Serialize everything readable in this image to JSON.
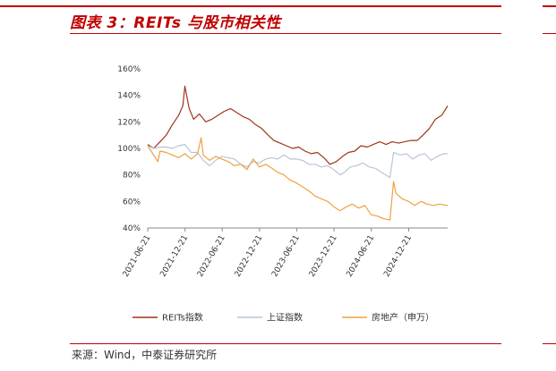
{
  "title": "图表 3：REITs 与股市相关性",
  "source": "来源：Wind，中泰证券研究所",
  "colors": {
    "accent": "#c00000",
    "reits": "#a0341c",
    "index": "#b8c4d6",
    "realestate": "#f0a040"
  },
  "chart_data": {
    "type": "line",
    "title": "",
    "xlabel": "",
    "ylabel": "",
    "ylim": [
      0.4,
      1.6
    ],
    "yticks": [
      0.4,
      0.6,
      0.8,
      1.0,
      1.2,
      1.4,
      1.6
    ],
    "ytick_labels": [
      "40%",
      "60%",
      "80%",
      "100%",
      "120%",
      "140%",
      "160%"
    ],
    "xlim": [
      "2021-06-21",
      "2025-06-30"
    ],
    "xticks": [
      "2021-06-21",
      "2021-12-21",
      "2022-06-21",
      "2022-12-21",
      "2023-06-21",
      "2023-12-21",
      "2024-06-21",
      "2024-12-21"
    ],
    "legend_position": "bottom",
    "grid": false,
    "series": [
      {
        "name": "REITs指数",
        "color": "#a0341c",
        "x": [
          "2021-06-21",
          "2021-07-20",
          "2021-08-20",
          "2021-09-20",
          "2021-10-20",
          "2021-11-20",
          "2021-12-10",
          "2021-12-20",
          "2022-01-10",
          "2022-02-01",
          "2022-03-01",
          "2022-04-01",
          "2022-05-01",
          "2022-06-01",
          "2022-07-01",
          "2022-08-01",
          "2022-09-01",
          "2022-10-01",
          "2022-11-01",
          "2022-12-01",
          "2023-01-01",
          "2023-02-01",
          "2023-03-01",
          "2023-04-01",
          "2023-05-01",
          "2023-06-01",
          "2023-07-01",
          "2023-08-01",
          "2023-09-01",
          "2023-10-01",
          "2023-11-01",
          "2023-12-01",
          "2024-01-01",
          "2024-02-01",
          "2024-03-01",
          "2024-04-01",
          "2024-05-01",
          "2024-06-01",
          "2024-07-01",
          "2024-08-01",
          "2024-09-01",
          "2024-10-01",
          "2024-11-01",
          "2024-12-01",
          "2025-01-01",
          "2025-02-01",
          "2025-03-01",
          "2025-04-01",
          "2025-05-01",
          "2025-06-01",
          "2025-06-30"
        ],
        "values": [
          1.03,
          1.0,
          1.05,
          1.1,
          1.18,
          1.25,
          1.32,
          1.47,
          1.3,
          1.22,
          1.26,
          1.2,
          1.22,
          1.25,
          1.28,
          1.3,
          1.27,
          1.24,
          1.22,
          1.18,
          1.15,
          1.1,
          1.06,
          1.04,
          1.02,
          1.0,
          1.01,
          0.98,
          0.96,
          0.97,
          0.93,
          0.88,
          0.9,
          0.94,
          0.97,
          0.98,
          1.02,
          1.01,
          1.03,
          1.05,
          1.03,
          1.05,
          1.04,
          1.05,
          1.06,
          1.06,
          1.1,
          1.15,
          1.22,
          1.25,
          1.32
        ]
      },
      {
        "name": "上证指数",
        "color": "#b8c4d6",
        "x": [
          "2021-06-21",
          "2021-07-20",
          "2021-08-20",
          "2021-09-20",
          "2021-10-20",
          "2021-11-20",
          "2021-12-20",
          "2022-01-20",
          "2022-02-20",
          "2022-03-20",
          "2022-04-20",
          "2022-05-20",
          "2022-06-20",
          "2022-07-20",
          "2022-08-20",
          "2022-09-20",
          "2022-10-20",
          "2022-11-20",
          "2022-12-20",
          "2023-01-20",
          "2023-02-20",
          "2023-03-20",
          "2023-04-20",
          "2023-05-20",
          "2023-06-20",
          "2023-07-20",
          "2023-08-20",
          "2023-09-20",
          "2023-10-20",
          "2023-11-20",
          "2023-12-20",
          "2024-01-20",
          "2024-02-10",
          "2024-03-10",
          "2024-04-10",
          "2024-05-10",
          "2024-06-10",
          "2024-07-10",
          "2024-08-10",
          "2024-09-20",
          "2024-10-08",
          "2024-11-10",
          "2024-12-10",
          "2025-01-10",
          "2025-02-10",
          "2025-03-10",
          "2025-04-10",
          "2025-05-10",
          "2025-06-10",
          "2025-06-30"
        ],
        "values": [
          1.02,
          1.0,
          1.01,
          1.01,
          1.0,
          1.02,
          1.03,
          0.97,
          0.97,
          0.91,
          0.87,
          0.91,
          0.94,
          0.93,
          0.92,
          0.88,
          0.86,
          0.9,
          0.89,
          0.92,
          0.93,
          0.92,
          0.95,
          0.92,
          0.92,
          0.91,
          0.88,
          0.88,
          0.86,
          0.87,
          0.84,
          0.8,
          0.82,
          0.86,
          0.87,
          0.89,
          0.86,
          0.85,
          0.82,
          0.78,
          0.97,
          0.95,
          0.96,
          0.92,
          0.95,
          0.96,
          0.91,
          0.94,
          0.96,
          0.96
        ]
      },
      {
        "name": "房地产（申万）",
        "color": "#f0a040",
        "x": [
          "2021-06-21",
          "2021-07-20",
          "2021-08-10",
          "2021-08-20",
          "2021-09-20",
          "2021-10-20",
          "2021-11-20",
          "2021-12-20",
          "2022-01-20",
          "2022-02-20",
          "2022-03-10",
          "2022-03-20",
          "2022-04-20",
          "2022-05-20",
          "2022-06-20",
          "2022-07-20",
          "2022-08-20",
          "2022-09-20",
          "2022-10-20",
          "2022-11-20",
          "2022-12-20",
          "2023-01-20",
          "2023-02-20",
          "2023-03-20",
          "2023-04-20",
          "2023-05-20",
          "2023-06-20",
          "2023-07-20",
          "2023-08-20",
          "2023-09-20",
          "2023-10-20",
          "2023-11-20",
          "2023-12-20",
          "2024-01-20",
          "2024-02-20",
          "2024-03-20",
          "2024-04-20",
          "2024-05-20",
          "2024-06-20",
          "2024-07-20",
          "2024-08-20",
          "2024-09-20",
          "2024-10-08",
          "2024-10-20",
          "2024-11-20",
          "2024-12-20",
          "2025-01-20",
          "2025-02-20",
          "2025-03-20",
          "2025-04-20",
          "2025-05-20",
          "2025-06-30"
        ],
        "values": [
          1.02,
          0.95,
          0.9,
          0.98,
          0.97,
          0.95,
          0.93,
          0.96,
          0.92,
          0.96,
          1.08,
          0.95,
          0.91,
          0.94,
          0.92,
          0.9,
          0.87,
          0.88,
          0.84,
          0.92,
          0.86,
          0.88,
          0.85,
          0.82,
          0.8,
          0.76,
          0.74,
          0.71,
          0.68,
          0.64,
          0.62,
          0.6,
          0.56,
          0.53,
          0.56,
          0.58,
          0.55,
          0.57,
          0.5,
          0.49,
          0.47,
          0.46,
          0.75,
          0.66,
          0.62,
          0.6,
          0.57,
          0.6,
          0.58,
          0.57,
          0.58,
          0.57
        ]
      }
    ]
  }
}
